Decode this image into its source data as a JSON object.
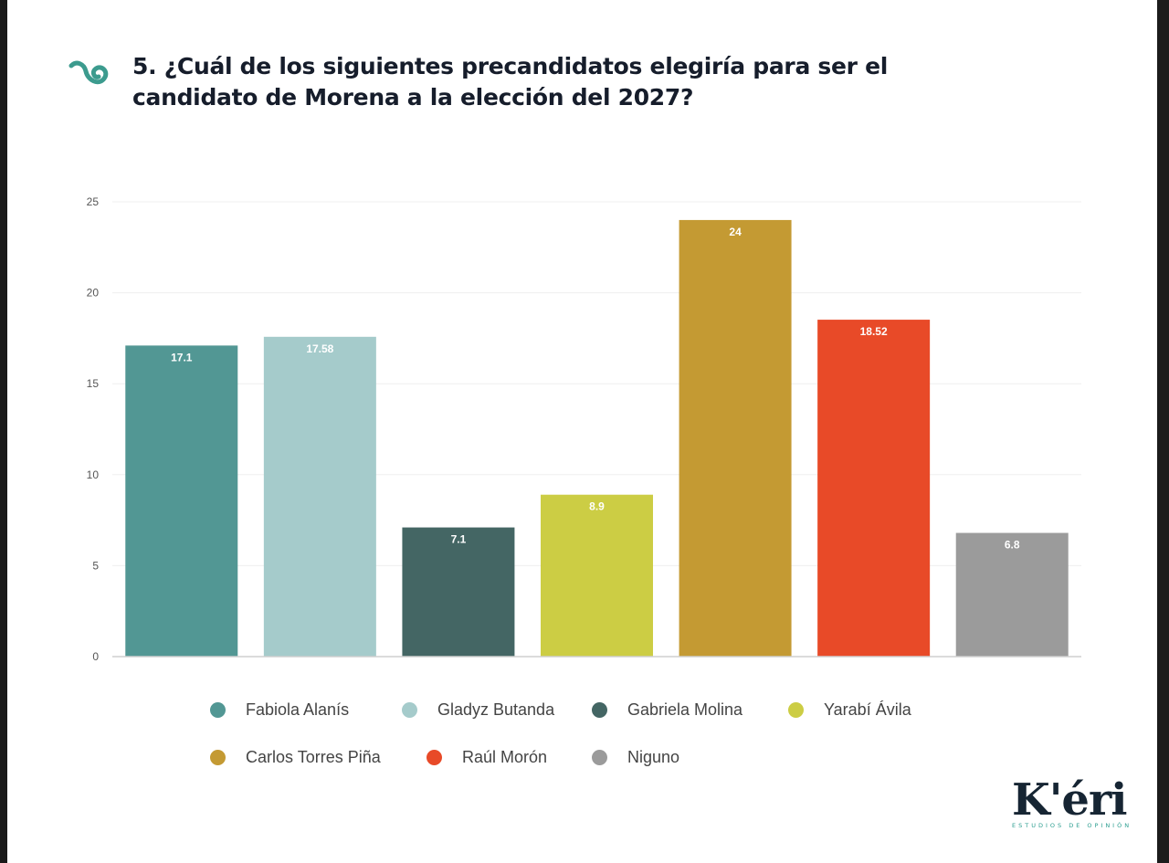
{
  "header": {
    "title_line1": "5. ¿Cuál de los siguientes precandidatos elegiría para ser el",
    "title_line2": "candidato de Morena a la elección del 2027?",
    "icon": "spiral-icon"
  },
  "chart_data": {
    "type": "bar",
    "title": "5. ¿Cuál de los siguientes precandidatos elegiría para ser el candidato de Morena a la elección del 2027?",
    "categories": [
      "Fabiola Alanís",
      "Gladyz Butanda",
      "Gabriela Molina",
      "Yarabí Ávila",
      "Carlos Torres Piña",
      "Raúl Morón",
      "Niguno"
    ],
    "values": [
      17.1,
      17.58,
      7.1,
      8.9,
      24,
      18.52,
      6.8
    ],
    "labels": [
      "17.1",
      "17.58",
      "7.1",
      "8.9",
      "24",
      "18.52",
      "6.8"
    ],
    "colors": [
      "#529794",
      "#a5cbcb",
      "#446664",
      "#cccd44",
      "#c49a33",
      "#e84a28",
      "#9b9b9b"
    ],
    "ylim": [
      0,
      25
    ],
    "yticks": [
      0,
      5,
      10,
      15,
      20,
      25
    ],
    "xlabel": "",
    "ylabel": "",
    "grid": true,
    "legend_position": "bottom"
  },
  "logo": {
    "name": "K'éri",
    "subtitle": "ESTUDIOS DE OPINIÓN"
  }
}
